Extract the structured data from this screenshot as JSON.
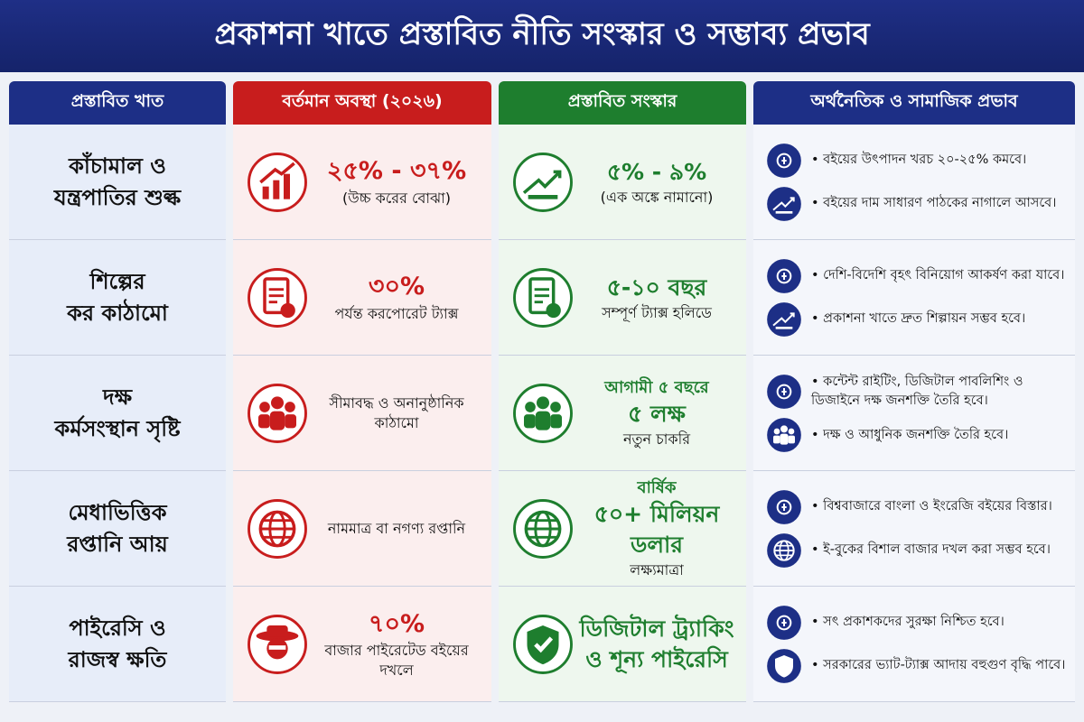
{
  "title": "প্রকাশনা খাতে প্রস্তাবিত নীতি সংস্কার ও সম্ভাব্য প্রভাব",
  "headers": [
    "প্রস্তাবিত খাত",
    "বর্তমান অবস্থা (২০২৬)",
    "প্রস্তাবিত সংস্কার",
    "অর্থনৈতিক ও সামাজিক প্রভাব"
  ],
  "rows": [
    {
      "sector": [
        "কাঁচামাল ও",
        "যন্ত্রপাতির শুল্ক"
      ],
      "current": {
        "headline": "২৫% - ৩৭%",
        "note": "(উচ্চ করের বোঝা)"
      },
      "proposed": {
        "headline": "৫% - ৯%",
        "note": "(এক অঙ্কে নামানো)"
      },
      "impacts": [
        "বইয়ের উৎপাদন খরচ ২০-২৫% কমবে।",
        "বইয়ের দাম সাধারণ পাঠকের নাগালে আসবে।"
      ]
    },
    {
      "sector": [
        "শিল্পের",
        "কর কাঠামো"
      ],
      "current": {
        "headline": "৩০%",
        "note": "পর্যন্ত করপোরেট ট্যাক্স"
      },
      "proposed": {
        "headline": "৫-১০ বছর",
        "note": "সম্পূর্ণ ট্যাক্স হলিডে"
      },
      "impacts": [
        "দেশি-বিদেশি বৃহৎ বিনিয়োগ আকর্ষণ করা যাবে।",
        "প্রকাশনা খাতে দ্রুত শিল্পায়ন সম্ভব হবে।"
      ]
    },
    {
      "sector": [
        "দক্ষ",
        "কর্মসংস্থান সৃষ্টি"
      ],
      "current": {
        "note": "সীমাবদ্ধ ও অনানুষ্ঠানিক কাঠামো"
      },
      "proposed": {
        "pre": "আগামী ৫ বছরে",
        "headline": "৫ লক্ষ",
        "note": "নতুন চাকরি"
      },
      "impacts": [
        "কন্টেন্ট রাইটিং, ডিজিটাল পাবলিশিং ও ডিজাইনে দক্ষ জনশক্তি তৈরি হবে।",
        "দক্ষ ও আধুনিক জনশক্তি তৈরি হবে।"
      ]
    },
    {
      "sector": [
        "মেধাভিত্তিক",
        "রপ্তানি আয়"
      ],
      "current": {
        "note": "নামমাত্র বা নগণ্য রপ্তানি"
      },
      "proposed": {
        "pre": "বার্ষিক",
        "headline": "৫০+ মিলিয়ন ডলার",
        "note": "লক্ষ্যমাত্রা"
      },
      "impacts": [
        "বিশ্ববাজারে বাংলা ও ইংরেজি বইয়ের বিস্তার।",
        "ই-বুকের বিশাল বাজার দখল করা সম্ভব হবে।"
      ]
    },
    {
      "sector": [
        "পাইরেসি ও",
        "রাজস্ব ক্ষতি"
      ],
      "current": {
        "headline": "৭০%",
        "note": "বাজার পাইরেটেড বইয়ের দখলে"
      },
      "proposed": {
        "headline": "ডিজিটাল ট্র্যাকিং ও শূন্য পাইরেসি"
      },
      "impacts": [
        "সৎ প্রকাশকদের সুরক্ষা নিশ্চিত হবে।",
        "সরকারের ভ্যাট-ট্যাক্স আদায় বহুগুণ বৃদ্ধি পাবে।"
      ]
    }
  ]
}
